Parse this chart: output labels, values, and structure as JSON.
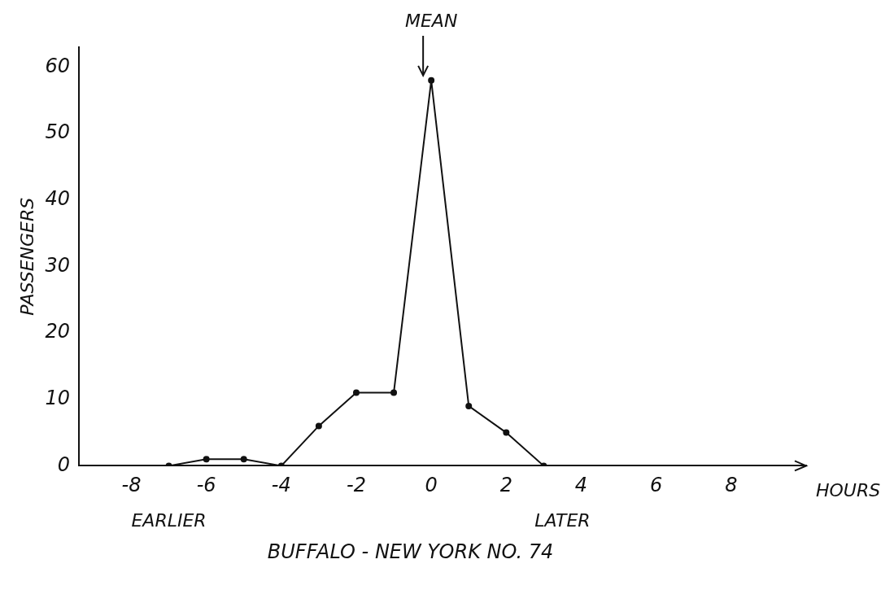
{
  "chart_data": {
    "type": "line",
    "title": "BUFFALO - NEW YORK NO. 74",
    "xlabel": "HOURS",
    "ylabel": "PASSENGERS",
    "x": [
      -7,
      -6,
      -5,
      -4,
      -3,
      -2,
      -1,
      0,
      1,
      2,
      3
    ],
    "series": [
      {
        "color": "#111111",
        "values": [
          0,
          1,
          1,
          0,
          6,
          11,
          11,
          58,
          9,
          5,
          0
        ]
      }
    ],
    "xlim": [
      -9.4,
      10
    ],
    "xticks": [
      -8,
      -6,
      -4,
      -2,
      0,
      2,
      4,
      6,
      8
    ],
    "ylim": [
      0,
      63
    ],
    "yticks": [
      0,
      10,
      20,
      30,
      40,
      50,
      60
    ],
    "annotations": [
      {
        "text": "MEAN",
        "x": 0,
        "y": 58
      },
      "EARLIER",
      "LATER"
    ],
    "grid": false,
    "legend": false,
    "marker": "circle",
    "line_style": "solid"
  }
}
